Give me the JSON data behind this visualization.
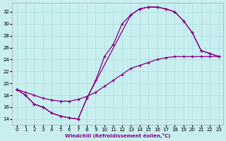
{
  "xlabel": "Windchill (Refroidissement éolien,°C)",
  "bg_color": "#c8eef0",
  "line_color": "#880088",
  "grid_color": "#aadddd",
  "xlim": [
    -0.5,
    23.5
  ],
  "ylim": [
    13,
    33.5
  ],
  "xticks": [
    0,
    1,
    2,
    3,
    4,
    5,
    6,
    7,
    8,
    9,
    10,
    11,
    12,
    13,
    14,
    15,
    16,
    17,
    18,
    19,
    20,
    21,
    22,
    23
  ],
  "yticks": [
    14,
    16,
    18,
    20,
    22,
    24,
    26,
    28,
    30,
    32
  ],
  "line1_x": [
    0,
    1,
    2,
    3,
    4,
    5,
    6,
    7,
    8,
    9,
    10,
    11,
    12,
    13,
    14,
    15,
    16,
    17,
    18,
    19,
    20,
    21,
    22,
    23
  ],
  "line1_y": [
    19.0,
    18.0,
    16.5,
    16.0,
    15.0,
    14.5,
    14.2,
    14.0,
    17.5,
    20.5,
    24.5,
    26.5,
    30.0,
    31.5,
    32.5,
    32.8,
    32.8,
    32.5,
    32.0,
    30.5,
    28.5,
    25.5,
    25.0,
    24.5
  ],
  "line2_x": [
    0,
    1,
    2,
    3,
    4,
    5,
    6,
    7,
    8,
    13,
    14,
    15,
    16,
    17,
    18,
    19,
    20,
    21,
    22,
    23
  ],
  "line2_y": [
    19.0,
    18.0,
    16.5,
    16.0,
    15.0,
    14.5,
    14.2,
    14.0,
    17.5,
    31.5,
    32.5,
    32.8,
    32.8,
    32.5,
    32.0,
    30.5,
    28.5,
    25.5,
    25.0,
    24.5
  ],
  "line3_x": [
    0,
    1,
    2,
    3,
    4,
    5,
    6,
    7,
    8,
    9,
    10,
    11,
    12,
    13,
    14,
    15,
    16,
    17,
    18,
    19,
    20,
    21,
    22,
    23
  ],
  "line3_y": [
    19.0,
    18.5,
    18.0,
    17.5,
    17.2,
    17.0,
    17.0,
    17.3,
    17.8,
    18.5,
    19.5,
    20.5,
    21.5,
    22.5,
    23.0,
    23.5,
    24.0,
    24.3,
    24.5,
    24.5,
    24.5,
    24.5,
    24.5,
    24.5
  ]
}
